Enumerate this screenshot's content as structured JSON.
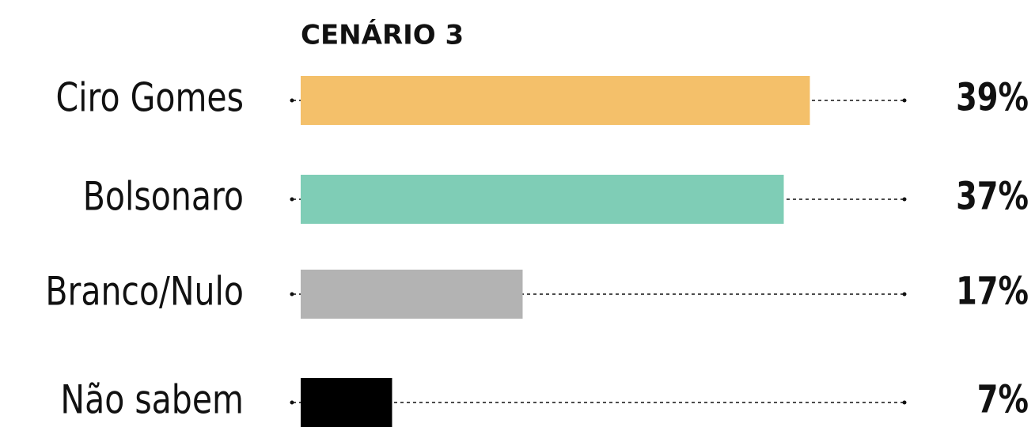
{
  "chart_data": {
    "type": "bar",
    "orientation": "horizontal",
    "title": "CENÁRIO 3",
    "categories": [
      "Ciro Gomes",
      "Bolsonaro",
      "Branco/Nulo",
      "Não sabem"
    ],
    "values": [
      39,
      37,
      17,
      7
    ],
    "value_labels": [
      "39%",
      "37%",
      "17%",
      "7%"
    ],
    "colors": [
      "#f4c06a",
      "#7fcdb6",
      "#b3b3b3",
      "#000000"
    ]
  }
}
